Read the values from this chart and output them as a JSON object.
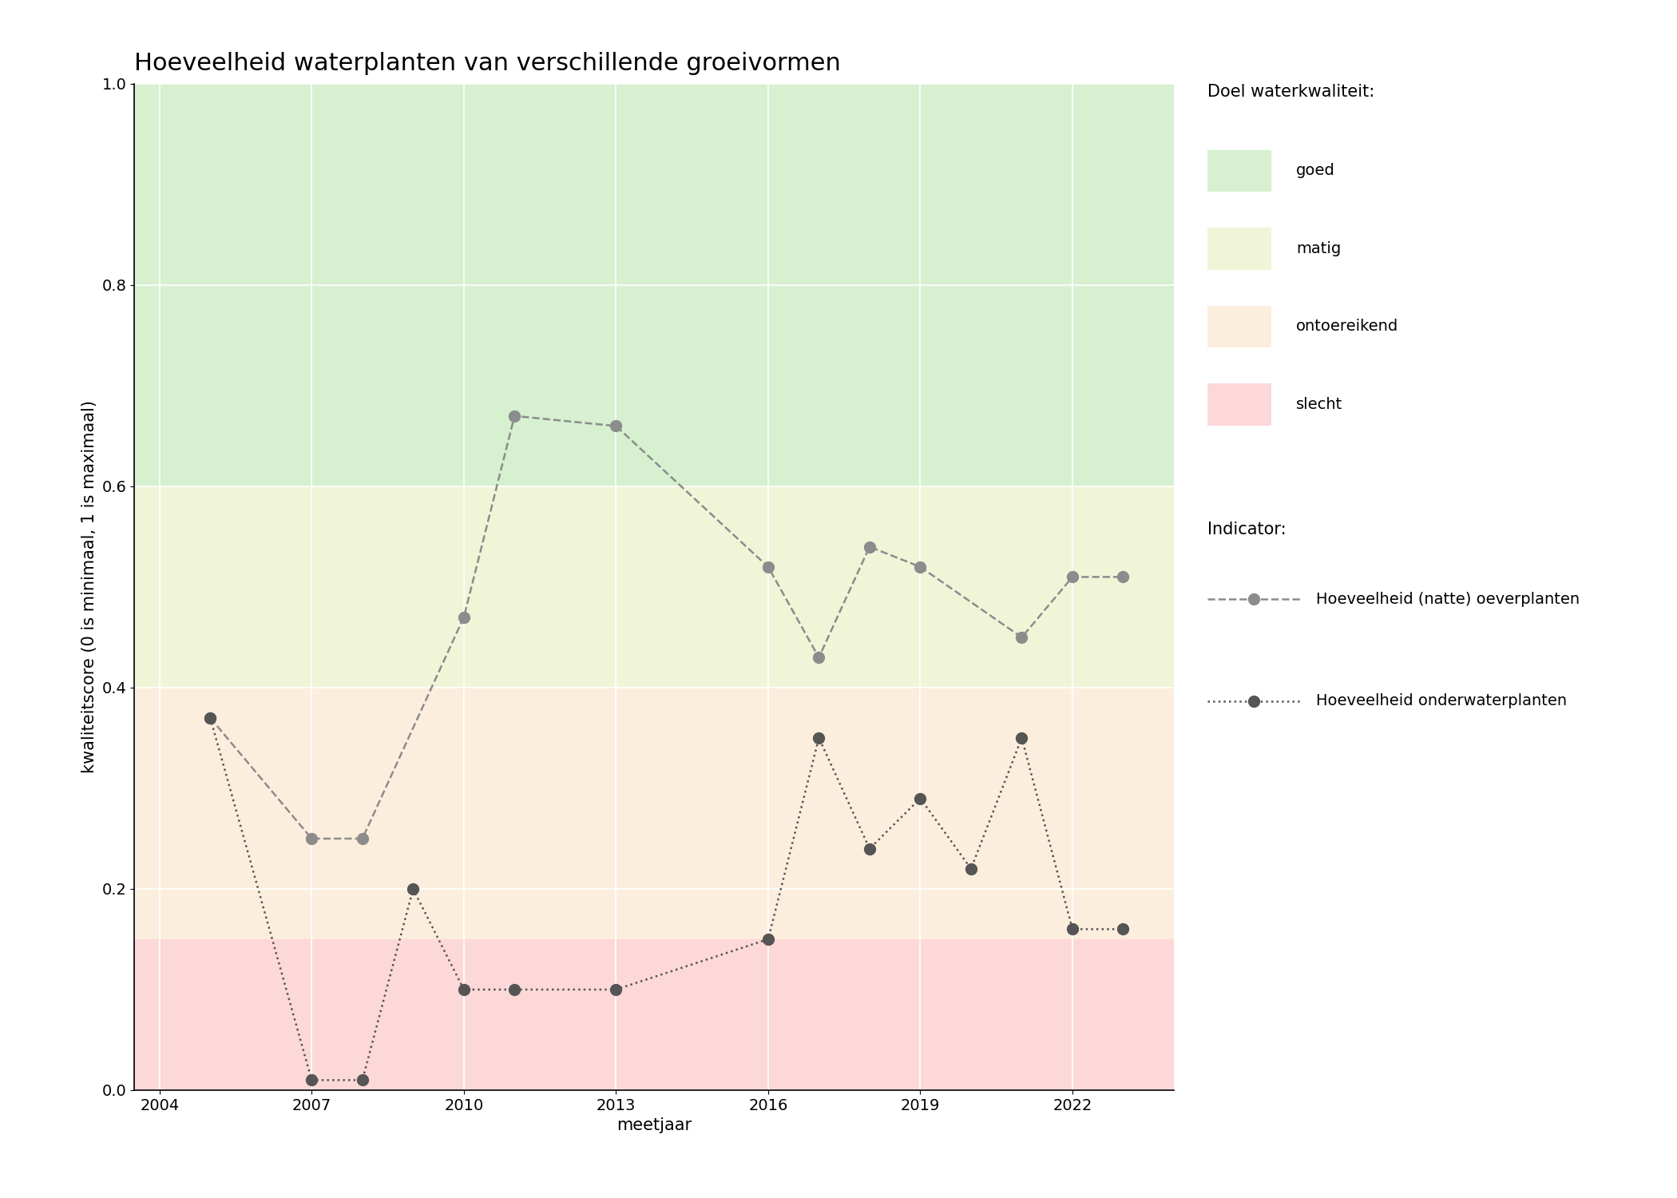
{
  "title": "Hoeveelheid waterplanten van verschillende groeivormen",
  "xlabel": "meetjaar",
  "ylabel": "kwaliteitscore (0 is minimaal, 1 is maximaal)",
  "ylim": [
    0.0,
    1.0
  ],
  "xlim": [
    2003.5,
    2024.0
  ],
  "xticks": [
    2004,
    2007,
    2010,
    2013,
    2016,
    2019,
    2022
  ],
  "yticks": [
    0.0,
    0.2,
    0.4,
    0.6,
    0.8,
    1.0
  ],
  "zones": [
    {
      "ymin": 0.6,
      "ymax": 1.0,
      "color": "#d6f0d0",
      "label": "goed"
    },
    {
      "ymin": 0.4,
      "ymax": 0.6,
      "color": "#f0f5d8",
      "label": "matig"
    },
    {
      "ymin": 0.15,
      "ymax": 0.4,
      "color": "#fceedd",
      "label": "ontoereikend"
    },
    {
      "ymin": 0.0,
      "ymax": 0.15,
      "color": "#fcd8d8",
      "label": "slecht"
    }
  ],
  "series": [
    {
      "name": "Hoeveelheid (natte) oeverplanten",
      "years": [
        2005,
        2007,
        2008,
        2010,
        2011,
        2013,
        2016,
        2017,
        2018,
        2019,
        2021,
        2022,
        2023
      ],
      "values": [
        0.37,
        0.25,
        0.25,
        0.47,
        0.67,
        0.66,
        0.52,
        0.43,
        0.54,
        0.52,
        0.45,
        0.51,
        0.51
      ],
      "linestyle": "--",
      "color": "#8c8c8c",
      "marker": "o",
      "markersize": 10,
      "linewidth": 1.8
    },
    {
      "name": "Hoeveelheid onderwaterplanten",
      "years": [
        2005,
        2007,
        2008,
        2009,
        2010,
        2011,
        2013,
        2016,
        2017,
        2018,
        2019,
        2020,
        2021,
        2022,
        2023
      ],
      "values": [
        0.37,
        0.01,
        0.01,
        0.2,
        0.1,
        0.1,
        0.1,
        0.15,
        0.35,
        0.24,
        0.29,
        0.22,
        0.35,
        0.16,
        0.16
      ],
      "linestyle": ":",
      "color": "#555555",
      "marker": "o",
      "markersize": 10,
      "linewidth": 1.8
    }
  ],
  "legend_title_zones": "Doel waterkwaliteit:",
  "legend_title_indicators": "Indicator:",
  "zone_colors": [
    "#d6f0d0",
    "#f0f5d8",
    "#fceedd",
    "#fcd8d8"
  ],
  "zone_labels": [
    "goed",
    "matig",
    "ontoereikend",
    "slecht"
  ],
  "title_fontsize": 22,
  "label_fontsize": 15,
  "tick_fontsize": 14,
  "legend_fontsize": 14,
  "legend_title_fontsize": 15
}
